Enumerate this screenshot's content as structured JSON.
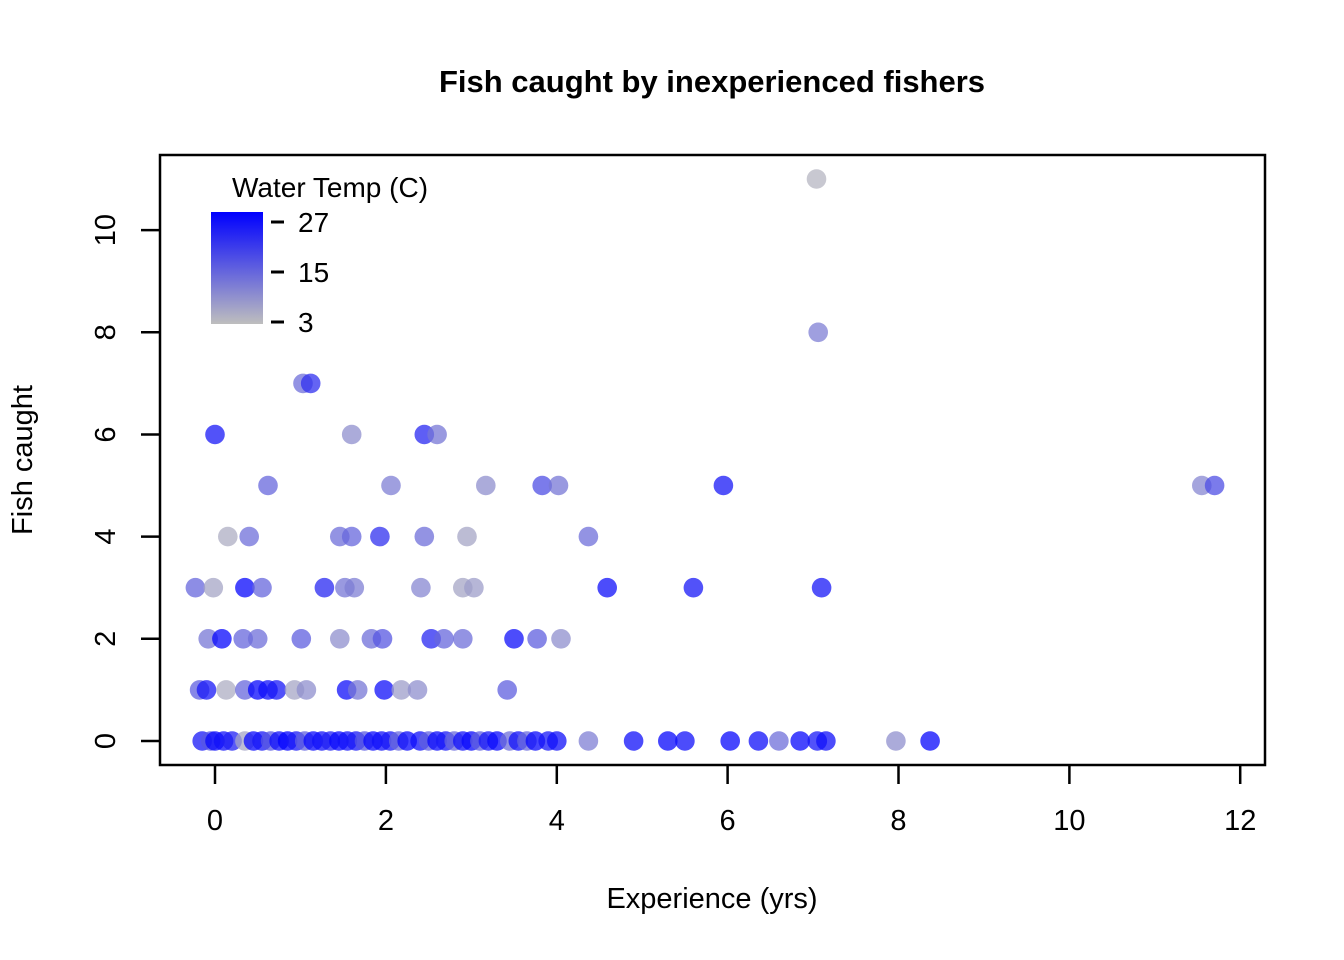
{
  "title": "Fish caught by inexperienced fishers",
  "chart_data": {
    "type": "scatter",
    "title": "Fish caught by inexperienced fishers",
    "xlabel": "Experience (yrs)",
    "ylabel": "Fish caught",
    "x_ticks": [
      0,
      2,
      4,
      6,
      8,
      10,
      12
    ],
    "y_ticks": [
      0,
      2,
      4,
      6,
      8,
      10
    ],
    "xlim": [
      -0.644,
      12.29
    ],
    "ylim": [
      -0.47,
      11.47
    ],
    "grid": false,
    "legend": {
      "title": "Water Temp (C)",
      "position": "top-left-inside",
      "ticks": [
        27,
        15,
        3
      ],
      "min": 3,
      "max": 27,
      "color_low": "#BEBEBE",
      "color_high": "#0000FF"
    },
    "point_alpha": 0.75,
    "point_radius_px": 9.8,
    "points_format": [
      "experience_yrs",
      "fish_caught",
      "water_temp_c"
    ],
    "points": [
      [
        -0.15,
        0,
        24
      ],
      [
        -0.05,
        0,
        16
      ],
      [
        0.0,
        0,
        26
      ],
      [
        0.1,
        0,
        25
      ],
      [
        0.2,
        0,
        23
      ],
      [
        0.35,
        0,
        6
      ],
      [
        0.45,
        0,
        26
      ],
      [
        0.55,
        0,
        24
      ],
      [
        0.65,
        0,
        16
      ],
      [
        0.75,
        0,
        25
      ],
      [
        0.85,
        0,
        27
      ],
      [
        0.95,
        0,
        24
      ],
      [
        1.05,
        0,
        15
      ],
      [
        1.15,
        0,
        26
      ],
      [
        1.25,
        0,
        25
      ],
      [
        1.35,
        0,
        23
      ],
      [
        1.45,
        0,
        26
      ],
      [
        1.55,
        0,
        25
      ],
      [
        1.65,
        0,
        24
      ],
      [
        1.75,
        0,
        16
      ],
      [
        1.85,
        0,
        26
      ],
      [
        1.95,
        0,
        25
      ],
      [
        2.05,
        0,
        24
      ],
      [
        2.15,
        0,
        14
      ],
      [
        2.25,
        0,
        26
      ],
      [
        2.4,
        0,
        25
      ],
      [
        2.5,
        0,
        15
      ],
      [
        2.6,
        0,
        26
      ],
      [
        2.7,
        0,
        24
      ],
      [
        2.8,
        0,
        14
      ],
      [
        2.9,
        0,
        25
      ],
      [
        3.0,
        0,
        26
      ],
      [
        3.1,
        0,
        15
      ],
      [
        3.2,
        0,
        24
      ],
      [
        3.3,
        0,
        26
      ],
      [
        3.45,
        0,
        13
      ],
      [
        3.55,
        0,
        25
      ],
      [
        3.65,
        0,
        14
      ],
      [
        3.75,
        0,
        26
      ],
      [
        3.9,
        0,
        24
      ],
      [
        4.0,
        0,
        25
      ],
      [
        4.37,
        0,
        11
      ],
      [
        4.9,
        0,
        25
      ],
      [
        5.3,
        0,
        26
      ],
      [
        5.5,
        0,
        25
      ],
      [
        6.03,
        0,
        26
      ],
      [
        6.36,
        0,
        25
      ],
      [
        6.6,
        0,
        13
      ],
      [
        6.85,
        0,
        26
      ],
      [
        7.05,
        0,
        24
      ],
      [
        7.15,
        0,
        25
      ],
      [
        7.97,
        0,
        9
      ],
      [
        8.37,
        0,
        26
      ],
      [
        -0.18,
        1,
        15
      ],
      [
        -0.1,
        1,
        24
      ],
      [
        0.13,
        1,
        5
      ],
      [
        0.35,
        1,
        14
      ],
      [
        0.5,
        1,
        26
      ],
      [
        0.62,
        1,
        25
      ],
      [
        0.72,
        1,
        24
      ],
      [
        0.93,
        1,
        6
      ],
      [
        1.07,
        1,
        9
      ],
      [
        1.54,
        1,
        25
      ],
      [
        1.67,
        1,
        12
      ],
      [
        1.98,
        1,
        25
      ],
      [
        2.18,
        1,
        7
      ],
      [
        2.37,
        1,
        9
      ],
      [
        3.42,
        1,
        15
      ],
      [
        -0.08,
        2,
        12
      ],
      [
        0.08,
        2,
        26
      ],
      [
        0.33,
        2,
        14
      ],
      [
        0.5,
        2,
        13
      ],
      [
        1.01,
        2,
        15
      ],
      [
        1.46,
        2,
        9
      ],
      [
        1.83,
        2,
        13
      ],
      [
        1.96,
        2,
        16
      ],
      [
        2.53,
        2,
        22
      ],
      [
        2.68,
        2,
        14
      ],
      [
        2.9,
        2,
        13
      ],
      [
        3.5,
        2,
        25
      ],
      [
        3.77,
        2,
        15
      ],
      [
        4.05,
        2,
        9
      ],
      [
        -0.23,
        3,
        14
      ],
      [
        -0.02,
        3,
        6
      ],
      [
        0.35,
        3,
        26
      ],
      [
        0.55,
        3,
        14
      ],
      [
        1.28,
        3,
        22
      ],
      [
        1.52,
        3,
        12
      ],
      [
        1.63,
        3,
        11
      ],
      [
        2.41,
        3,
        10
      ],
      [
        2.9,
        3,
        6
      ],
      [
        3.03,
        3,
        7
      ],
      [
        4.59,
        3,
        25
      ],
      [
        5.6,
        3,
        24
      ],
      [
        7.1,
        3,
        24
      ],
      [
        0.15,
        4,
        5
      ],
      [
        0.4,
        4,
        13
      ],
      [
        1.46,
        4,
        13
      ],
      [
        1.6,
        4,
        14
      ],
      [
        1.93,
        4,
        21
      ],
      [
        2.45,
        4,
        13
      ],
      [
        2.95,
        4,
        6
      ],
      [
        4.37,
        4,
        13
      ],
      [
        0.62,
        5,
        14
      ],
      [
        2.06,
        5,
        11
      ],
      [
        3.17,
        5,
        9
      ],
      [
        3.83,
        5,
        17
      ],
      [
        4.02,
        5,
        12
      ],
      [
        5.95,
        5,
        24
      ],
      [
        11.55,
        5,
        10
      ],
      [
        11.7,
        5,
        17
      ],
      [
        0.0,
        6,
        24
      ],
      [
        1.6,
        6,
        9
      ],
      [
        2.45,
        6,
        22
      ],
      [
        2.6,
        6,
        12
      ],
      [
        1.03,
        7,
        13
      ],
      [
        1.12,
        7,
        21
      ],
      [
        7.06,
        8,
        11
      ],
      [
        7.04,
        11,
        4
      ]
    ]
  }
}
